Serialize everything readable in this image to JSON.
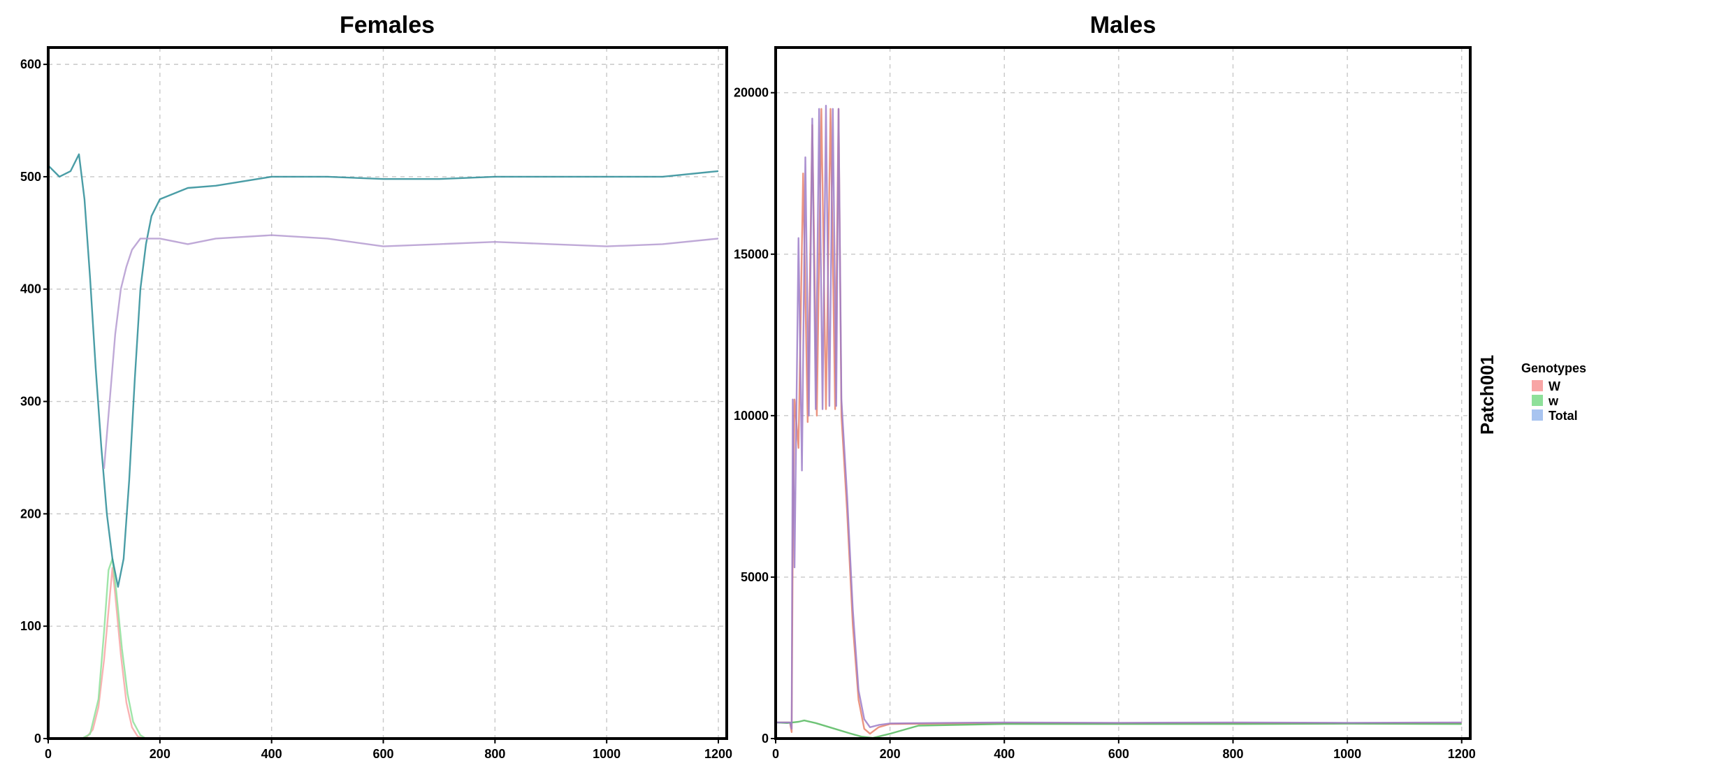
{
  "chart_data": [
    {
      "type": "line",
      "title": "Females",
      "xlim": [
        0,
        1215
      ],
      "ylim": [
        0,
        615
      ],
      "x_ticks": [
        0,
        200,
        400,
        600,
        800,
        1000,
        1200
      ],
      "y_ticks": [
        0,
        100,
        200,
        300,
        400,
        500,
        600
      ],
      "grid": true,
      "series": [
        {
          "genotype": "W",
          "color": "#F8A5A5",
          "points": [
            [
              60,
              0
            ],
            [
              70,
              2
            ],
            [
              80,
              8
            ],
            [
              90,
              28
            ],
            [
              100,
              70
            ],
            [
              110,
              125
            ],
            [
              115,
              152
            ],
            [
              120,
              128
            ],
            [
              130,
              75
            ],
            [
              140,
              32
            ],
            [
              150,
              10
            ],
            [
              160,
              2
            ],
            [
              170,
              0
            ]
          ]
        },
        {
          "genotype": "w",
          "color": "#8EE09A",
          "points": [
            [
              60,
              0
            ],
            [
              75,
              4
            ],
            [
              90,
              35
            ],
            [
              100,
              95
            ],
            [
              108,
              150
            ],
            [
              115,
              160
            ],
            [
              122,
              130
            ],
            [
              132,
              80
            ],
            [
              142,
              40
            ],
            [
              152,
              15
            ],
            [
              165,
              3
            ],
            [
              175,
              0
            ]
          ]
        },
        {
          "genotype": "Total",
          "color": "#2A8C96",
          "points": [
            [
              0,
              510
            ],
            [
              20,
              500
            ],
            [
              40,
              505
            ],
            [
              55,
              520
            ],
            [
              65,
              480
            ],
            [
              75,
              410
            ],
            [
              85,
              330
            ],
            [
              95,
              260
            ],
            [
              105,
              200
            ],
            [
              115,
              160
            ],
            [
              125,
              135
            ],
            [
              135,
              160
            ],
            [
              145,
              230
            ],
            [
              155,
              320
            ],
            [
              165,
              400
            ],
            [
              175,
              440
            ],
            [
              185,
              465
            ],
            [
              200,
              480
            ],
            [
              250,
              490
            ],
            [
              300,
              492
            ],
            [
              400,
              500
            ],
            [
              500,
              500
            ],
            [
              600,
              498
            ],
            [
              700,
              498
            ],
            [
              800,
              500
            ],
            [
              900,
              500
            ],
            [
              1000,
              500
            ],
            [
              1100,
              500
            ],
            [
              1200,
              505
            ]
          ]
        },
        {
          "genotype": "Total",
          "color": "#B49AD0",
          "points": [
            [
              100,
              240
            ],
            [
              110,
              300
            ],
            [
              120,
              360
            ],
            [
              130,
              400
            ],
            [
              140,
              420
            ],
            [
              150,
              435
            ],
            [
              165,
              445
            ],
            [
              200,
              445
            ],
            [
              250,
              440
            ],
            [
              300,
              445
            ],
            [
              400,
              448
            ],
            [
              500,
              445
            ],
            [
              600,
              438
            ],
            [
              700,
              440
            ],
            [
              800,
              442
            ],
            [
              900,
              440
            ],
            [
              1000,
              438
            ],
            [
              1100,
              440
            ],
            [
              1200,
              445
            ]
          ]
        }
      ]
    },
    {
      "type": "line",
      "title": "Males",
      "xlim": [
        0,
        1215
      ],
      "ylim": [
        0,
        21400
      ],
      "x_ticks": [
        0,
        200,
        400,
        600,
        800,
        1000,
        1200
      ],
      "y_ticks": [
        0,
        5000,
        10000,
        15000,
        20000
      ],
      "grid": true,
      "series": [
        {
          "genotype": "W",
          "color": "#E8836B",
          "points": [
            [
              0,
              500
            ],
            [
              25,
              500
            ],
            [
              28,
              200
            ],
            [
              30,
              6000
            ],
            [
              33,
              10500
            ],
            [
              40,
              9000
            ],
            [
              48,
              17500
            ],
            [
              56,
              9800
            ],
            [
              64,
              19000
            ],
            [
              72,
              10000
            ],
            [
              80,
              19500
            ],
            [
              88,
              10200
            ],
            [
              96,
              19500
            ],
            [
              104,
              10200
            ],
            [
              110,
              19500
            ],
            [
              115,
              10000
            ],
            [
              125,
              7000
            ],
            [
              135,
              3500
            ],
            [
              145,
              1200
            ],
            [
              155,
              300
            ],
            [
              165,
              150
            ],
            [
              180,
              350
            ],
            [
              200,
              450
            ],
            [
              400,
              480
            ],
            [
              600,
              470
            ],
            [
              800,
              480
            ],
            [
              1000,
              470
            ],
            [
              1200,
              480
            ]
          ]
        },
        {
          "genotype": "w",
          "color": "#55B85E",
          "points": [
            [
              0,
              500
            ],
            [
              20,
              480
            ],
            [
              40,
              520
            ],
            [
              50,
              560
            ],
            [
              70,
              480
            ],
            [
              100,
              320
            ],
            [
              130,
              160
            ],
            [
              150,
              60
            ],
            [
              170,
              20
            ],
            [
              200,
              150
            ],
            [
              250,
              400
            ],
            [
              400,
              450
            ],
            [
              600,
              450
            ],
            [
              800,
              450
            ],
            [
              1000,
              460
            ],
            [
              1200,
              450
            ]
          ]
        },
        {
          "genotype": "Total",
          "color": "#9C7DC8",
          "points": [
            [
              0,
              500
            ],
            [
              25,
              500
            ],
            [
              28,
              300
            ],
            [
              30,
              10500
            ],
            [
              33,
              5300
            ],
            [
              40,
              15500
            ],
            [
              46,
              8300
            ],
            [
              52,
              18000
            ],
            [
              58,
              10000
            ],
            [
              64,
              19200
            ],
            [
              70,
              10200
            ],
            [
              76,
              19500
            ],
            [
              82,
              10200
            ],
            [
              88,
              19600
            ],
            [
              94,
              10300
            ],
            [
              100,
              19500
            ],
            [
              106,
              10300
            ],
            [
              110,
              19500
            ],
            [
              115,
              10500
            ],
            [
              125,
              7500
            ],
            [
              135,
              4000
            ],
            [
              145,
              1500
            ],
            [
              155,
              600
            ],
            [
              165,
              350
            ],
            [
              180,
              420
            ],
            [
              200,
              470
            ],
            [
              400,
              500
            ],
            [
              600,
              490
            ],
            [
              800,
              500
            ],
            [
              1000,
              490
            ],
            [
              1200,
              500
            ]
          ]
        }
      ]
    }
  ],
  "strip_label": "Patch001",
  "legend": {
    "title": "Genotypes",
    "items": [
      {
        "label": "W",
        "color": "#F8A5A5"
      },
      {
        "label": "w",
        "color": "#8EE09A"
      },
      {
        "label": "Total",
        "color": "#A8C4F0"
      }
    ]
  }
}
